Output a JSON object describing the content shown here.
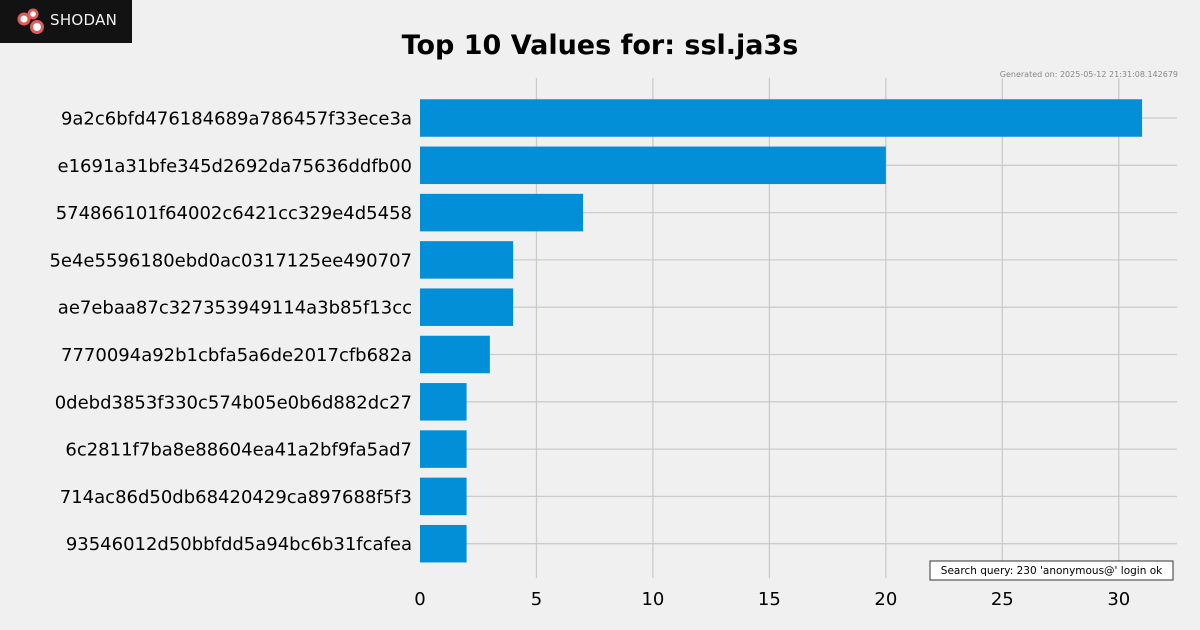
{
  "brand": {
    "name": "Shodan",
    "wordmark": "SHODAN"
  },
  "chart_data": {
    "type": "bar",
    "orientation": "horizontal",
    "title": "Top 10 Values for: ssl.ja3s",
    "generated_text": "Generated on: 2025-05-12 21:31:08.142679",
    "query_text": "Search query: 230 'anonymous@' login ok",
    "categories": [
      "9a2c6bfd476184689a786457f33ece3a",
      "e1691a31bfe345d2692da75636ddfb00",
      "574866101f64002c6421cc329e4d5458",
      "5e4e5596180ebd0ac0317125ee490707",
      "ae7ebaa87c327353949114a3b85f13cc",
      "7770094a92b1cbfa5a6de2017cfb682a",
      "0debd3853f330c574b05e0b6d882dc27",
      "6c2811f7ba8e88604ea41a2bf9fa5ad7",
      "714ac86d50db68420429ca897688f5f3",
      "93546012d50bbfdd5a94bc6b31fcafea"
    ],
    "values": [
      31,
      20,
      7,
      4,
      4,
      3,
      2,
      2,
      2,
      2
    ],
    "xlim": [
      0,
      32.5
    ],
    "xticks": [
      0,
      5,
      10,
      15,
      20,
      25,
      30
    ],
    "bar_color": "#038fd8",
    "grid_color": "#cbcbcb",
    "background": "#f0f0f0",
    "grid": true
  }
}
